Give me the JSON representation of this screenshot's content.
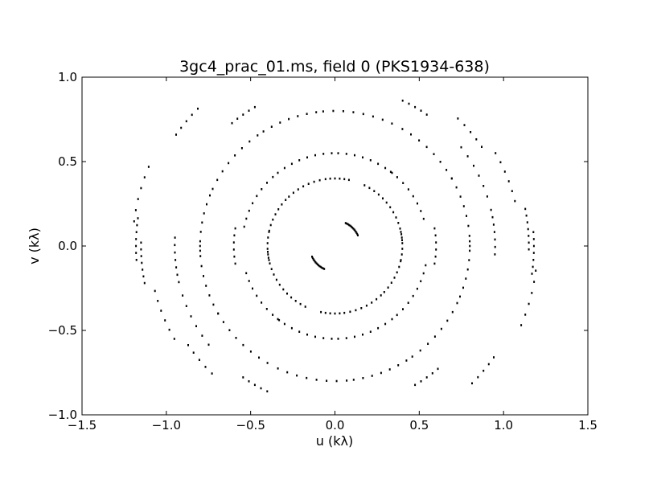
{
  "chart_data": {
    "type": "scatter",
    "title": "3gc4_prac_01.ms, field 0 (PKS1934-638)",
    "xlabel": "u (kλ)",
    "ylabel": "v (kλ)",
    "xlim": [
      -1.5,
      1.5
    ],
    "ylim": [
      -1.0,
      1.0
    ],
    "xticks": [
      -1.5,
      -1.0,
      -0.5,
      0.0,
      0.5,
      1.0,
      1.5
    ],
    "yticks": [
      -1.0,
      -0.5,
      0.0,
      0.5,
      1.0
    ],
    "xtick_labels": [
      "−1.5",
      "−1.0",
      "−0.5",
      "0.0",
      "0.5",
      "1.0",
      "1.5"
    ],
    "ytick_labels": [
      "−1.0",
      "−0.5",
      "0.0",
      "0.5",
      "1.0"
    ],
    "grid": false,
    "marker_color": "#000000",
    "baselines": [
      {
        "r": 0.15,
        "theta": 45,
        "half_span": 20,
        "n": 14
      },
      {
        "r": 0.4,
        "theta": 20,
        "half_span": 15,
        "n": 7
      },
      {
        "r": 0.4,
        "theta": 52,
        "half_span": 12,
        "n": 6
      },
      {
        "r": 0.4,
        "theta": 88,
        "half_span": 10,
        "n": 6
      },
      {
        "r": 0.4,
        "theta": 118,
        "half_span": 15,
        "n": 7
      },
      {
        "r": 0.4,
        "theta": 152,
        "half_span": 15,
        "n": 7
      },
      {
        "r": 0.4,
        "theta": 180,
        "half_span": 12,
        "n": 6
      },
      {
        "r": 0.55,
        "theta": 35,
        "half_span": 18,
        "n": 8
      },
      {
        "r": 0.55,
        "theta": 70,
        "half_span": 18,
        "n": 8
      },
      {
        "r": 0.55,
        "theta": 110,
        "half_span": 18,
        "n": 8
      },
      {
        "r": 0.55,
        "theta": 150,
        "half_span": 18,
        "n": 8
      },
      {
        "r": 0.6,
        "theta": 0,
        "half_span": 10,
        "n": 6
      },
      {
        "r": 0.8,
        "theta": 15,
        "half_span": 15,
        "n": 8
      },
      {
        "r": 0.8,
        "theta": 45,
        "half_span": 15,
        "n": 8
      },
      {
        "r": 0.8,
        "theta": 80,
        "half_span": 15,
        "n": 8
      },
      {
        "r": 0.8,
        "theta": 110,
        "half_span": 12,
        "n": 7
      },
      {
        "r": 0.8,
        "theta": 140,
        "half_span": 15,
        "n": 8
      },
      {
        "r": 0.8,
        "theta": 170,
        "half_span": 12,
        "n": 7
      },
      {
        "r": 0.95,
        "theta": 5,
        "half_span": 8,
        "n": 7
      },
      {
        "r": 0.95,
        "theta": 28,
        "half_span": 10,
        "n": 6
      },
      {
        "r": 0.95,
        "theta": 60,
        "half_span": 5,
        "n": 5
      },
      {
        "r": 0.95,
        "theta": 125,
        "half_span": 5,
        "n": 5
      },
      {
        "r": 1.15,
        "theta": 5,
        "half_span": 6,
        "n": 7
      },
      {
        "r": 1.1,
        "theta": 22,
        "half_span": 8,
        "n": 6
      },
      {
        "r": 1.05,
        "theta": 40,
        "half_span": 6,
        "n": 5
      },
      {
        "r": 1.15,
        "theta": 140,
        "half_span": 5,
        "n": 5
      },
      {
        "r": 1.2,
        "theta": 165,
        "half_span": 8,
        "n": 6
      },
      {
        "r": 1.18,
        "theta": 178,
        "half_span": 6,
        "n": 7
      }
    ]
  }
}
